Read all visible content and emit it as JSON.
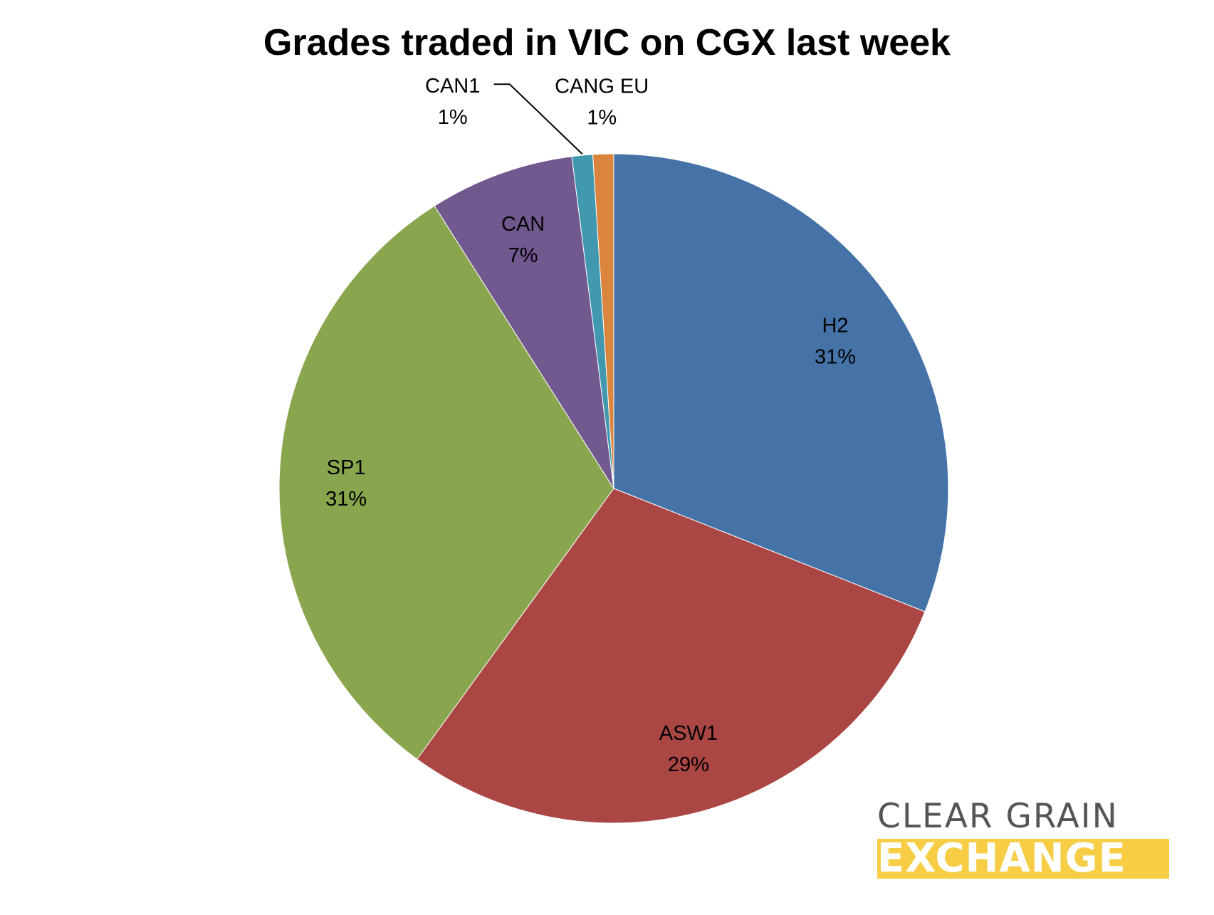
{
  "chart_data": {
    "type": "pie",
    "title": "Grades traded in VIC on CGX last week",
    "start_angle_deg": 0,
    "direction": "clockwise",
    "slices": [
      {
        "label": "H2",
        "value": 31,
        "value_label": "31%",
        "color": "#4572a7"
      },
      {
        "label": "ASW1",
        "value": 29,
        "value_label": "29%",
        "color": "#aa4643"
      },
      {
        "label": "SP1",
        "value": 31,
        "value_label": "31%",
        "color": "#89a54e"
      },
      {
        "label": "CAN",
        "value": 7,
        "value_label": "7%",
        "color": "#71588f"
      },
      {
        "label": "CAN1",
        "value": 1,
        "value_label": "1%",
        "color": "#4198af"
      },
      {
        "label": "CANG EU",
        "value": 1,
        "value_label": "1%",
        "color": "#db843d"
      }
    ],
    "legend": "none"
  },
  "logo": {
    "line1": "CLEAR GRAIN",
    "line2": "EXCHANGE",
    "line2_background": "#f6cd45",
    "line1_color": "#555555"
  }
}
